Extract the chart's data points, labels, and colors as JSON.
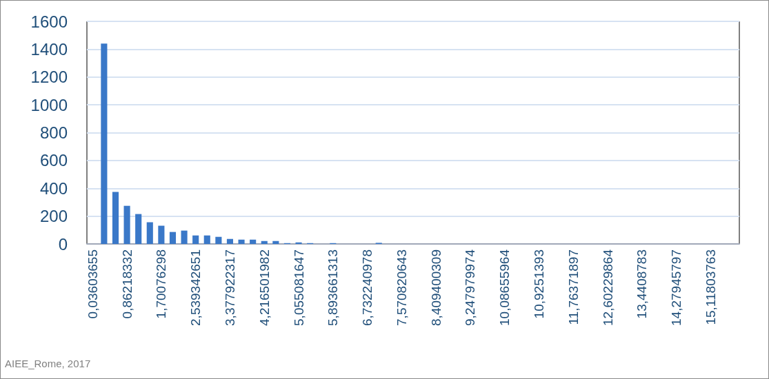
{
  "chart_data": {
    "type": "bar",
    "categories": [
      "0,03603655",
      null,
      null,
      "0,86218332",
      null,
      null,
      "1,70076298",
      null,
      null,
      "2,539342651",
      null,
      null,
      "3,377922317",
      null,
      null,
      "4,216501982",
      null,
      null,
      "5,055081647",
      null,
      null,
      "5,893661313",
      null,
      null,
      "6,732240978",
      null,
      null,
      "7,570820643",
      null,
      null,
      "8,409400309",
      null,
      null,
      "9,247979974",
      null,
      null,
      "10,08655964",
      null,
      null,
      "10,9251393",
      null,
      null,
      "11,76371897",
      null,
      null,
      "12,60229864",
      null,
      null,
      "13,4408783",
      null,
      null,
      "14,27945797",
      null,
      null,
      "15,11803763",
      null,
      null
    ],
    "values": [
      0,
      1440,
      374,
      274,
      215,
      156,
      131,
      86,
      96,
      61,
      61,
      51,
      36,
      31,
      31,
      21,
      21,
      6,
      11,
      6,
      null,
      6,
      null,
      null,
      null,
      8,
      0,
      0,
      0,
      0,
      null,
      0,
      null,
      null,
      0,
      0,
      0,
      0,
      0,
      0,
      0,
      0,
      0,
      0,
      0,
      0,
      0,
      0,
      0,
      0,
      0,
      0,
      0,
      0,
      0,
      0,
      0
    ],
    "color": "#3a78c8",
    "ylim": [
      0,
      1600
    ],
    "yticks": [
      0,
      200,
      400,
      600,
      800,
      1000,
      1200,
      1400,
      1600
    ],
    "grid": "y",
    "annotations": [
      "AIEE_Rome, 2017"
    ]
  }
}
